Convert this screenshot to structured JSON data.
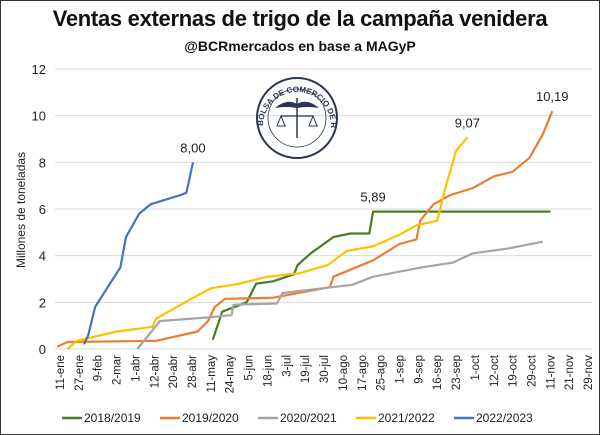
{
  "chart_data": {
    "type": "line",
    "title": "Ventas externas de trigo de la campaña venidera",
    "subtitle": "@BCRmercados en base a MAGyP",
    "xlabel": "",
    "ylabel": "Millones de toneladas",
    "ylim": [
      0,
      12
    ],
    "yticks": [
      0,
      2,
      4,
      6,
      8,
      10,
      12
    ],
    "grid": true,
    "legend_position": "bottom",
    "categories": [
      "11-ene",
      "27-ene",
      "9-feb",
      "2-mar",
      "1-abr",
      "12-abr",
      "20-abr",
      "28-abr",
      "11-may",
      "24-may",
      "5-jun",
      "18-jun",
      "3-jul",
      "19-jul",
      "30-jul",
      "10-ago",
      "17-ago",
      "25-ago",
      "1-sep",
      "9-sep",
      "16-sep",
      "23-sep",
      "1-oct",
      "12-oct",
      "19-oct",
      "29-oct",
      "11-nov",
      "21-nov",
      "29-nov"
    ],
    "x_note": "x values are fractional category indices",
    "series": [
      {
        "name": "2018/2019",
        "color": "#4a7a2a",
        "end_label": "5,89",
        "points": [
          [
            8.1,
            0.4
          ],
          [
            8.6,
            1.6
          ],
          [
            9.9,
            2.0
          ],
          [
            10.4,
            2.8
          ],
          [
            11.3,
            2.9
          ],
          [
            12.4,
            3.2
          ],
          [
            12.6,
            3.6
          ],
          [
            13.3,
            4.1
          ],
          [
            14.5,
            4.8
          ],
          [
            15.4,
            4.95
          ],
          [
            16.4,
            4.95
          ],
          [
            16.6,
            5.89
          ],
          [
            26,
            5.89
          ]
        ]
      },
      {
        "name": "2019/2020",
        "color": "#ed7d31",
        "end_label": "10,19",
        "points": [
          [
            -0.15,
            0.1
          ],
          [
            0.4,
            0.3
          ],
          [
            5.1,
            0.35
          ],
          [
            7.3,
            0.75
          ],
          [
            7.85,
            1.2
          ],
          [
            8.2,
            1.8
          ],
          [
            8.75,
            2.15
          ],
          [
            11.3,
            2.2
          ],
          [
            14.3,
            2.65
          ],
          [
            14.5,
            3.1
          ],
          [
            16.6,
            3.8
          ],
          [
            18.0,
            4.5
          ],
          [
            18.9,
            4.7
          ],
          [
            19.1,
            5.5
          ],
          [
            19.8,
            6.2
          ],
          [
            20.7,
            6.6
          ],
          [
            21.9,
            6.9
          ],
          [
            23,
            7.4
          ],
          [
            24,
            7.6
          ],
          [
            24.9,
            8.2
          ],
          [
            25.6,
            9.2
          ],
          [
            26.1,
            10.19
          ]
        ]
      },
      {
        "name": "2020/2021",
        "color": "#a5a5a5",
        "end_label": "",
        "points": [
          [
            4.1,
            0
          ],
          [
            5.3,
            1.2
          ],
          [
            7.8,
            1.35
          ],
          [
            9.1,
            1.45
          ],
          [
            9.2,
            1.9
          ],
          [
            11.5,
            1.95
          ],
          [
            11.8,
            2.4
          ],
          [
            15.5,
            2.75
          ],
          [
            16.6,
            3.1
          ],
          [
            19.2,
            3.5
          ],
          [
            20.8,
            3.7
          ],
          [
            21.9,
            4.1
          ],
          [
            23.7,
            4.3
          ],
          [
            25.6,
            4.6
          ]
        ]
      },
      {
        "name": "2021/2022",
        "color": "#ffc000",
        "end_label": "9,07",
        "points": [
          [
            0.4,
            0
          ],
          [
            0.9,
            0.35
          ],
          [
            3.0,
            0.75
          ],
          [
            4.9,
            0.95
          ],
          [
            5.1,
            1.3
          ],
          [
            6.4,
            1.9
          ],
          [
            8.0,
            2.6
          ],
          [
            9.5,
            2.8
          ],
          [
            11,
            3.1
          ],
          [
            12.7,
            3.25
          ],
          [
            14.2,
            3.6
          ],
          [
            15.2,
            4.2
          ],
          [
            16.6,
            4.4
          ],
          [
            18.0,
            4.9
          ],
          [
            18.9,
            5.3
          ],
          [
            20,
            5.5
          ],
          [
            20.4,
            6.8
          ],
          [
            21,
            8.5
          ],
          [
            21.6,
            9.07
          ]
        ]
      },
      {
        "name": "2022/2023",
        "color": "#4472c4",
        "end_label": "8,00",
        "points": [
          [
            1.27,
            0.2
          ],
          [
            1.5,
            0.6
          ],
          [
            1.86,
            1.8
          ],
          [
            3.2,
            3.5
          ],
          [
            3.5,
            4.8
          ],
          [
            4.2,
            5.8
          ],
          [
            4.8,
            6.2
          ],
          [
            6.4,
            6.6
          ],
          [
            6.7,
            6.7
          ],
          [
            7.05,
            8.0
          ]
        ]
      }
    ]
  },
  "logo": {
    "text": "BOLSA DE COMERCIO DE ROSARIO"
  }
}
